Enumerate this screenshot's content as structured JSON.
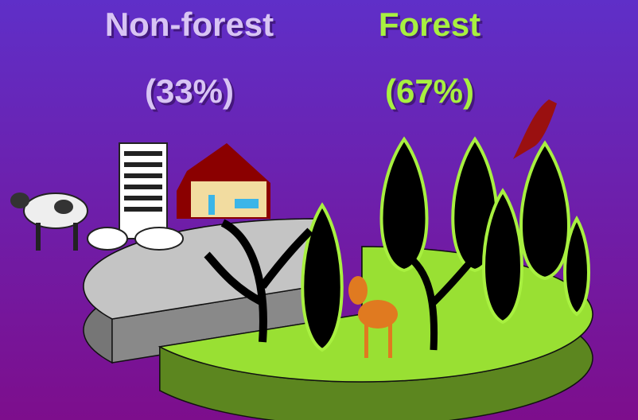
{
  "chart_data": {
    "type": "pie",
    "categories": [
      "Non-forest",
      "Forest"
    ],
    "values": [
      33,
      67
    ],
    "value_labels": [
      "(33%)",
      "(67%)"
    ],
    "colors": [
      "#c4c4c4",
      "#99e033"
    ]
  }
}
